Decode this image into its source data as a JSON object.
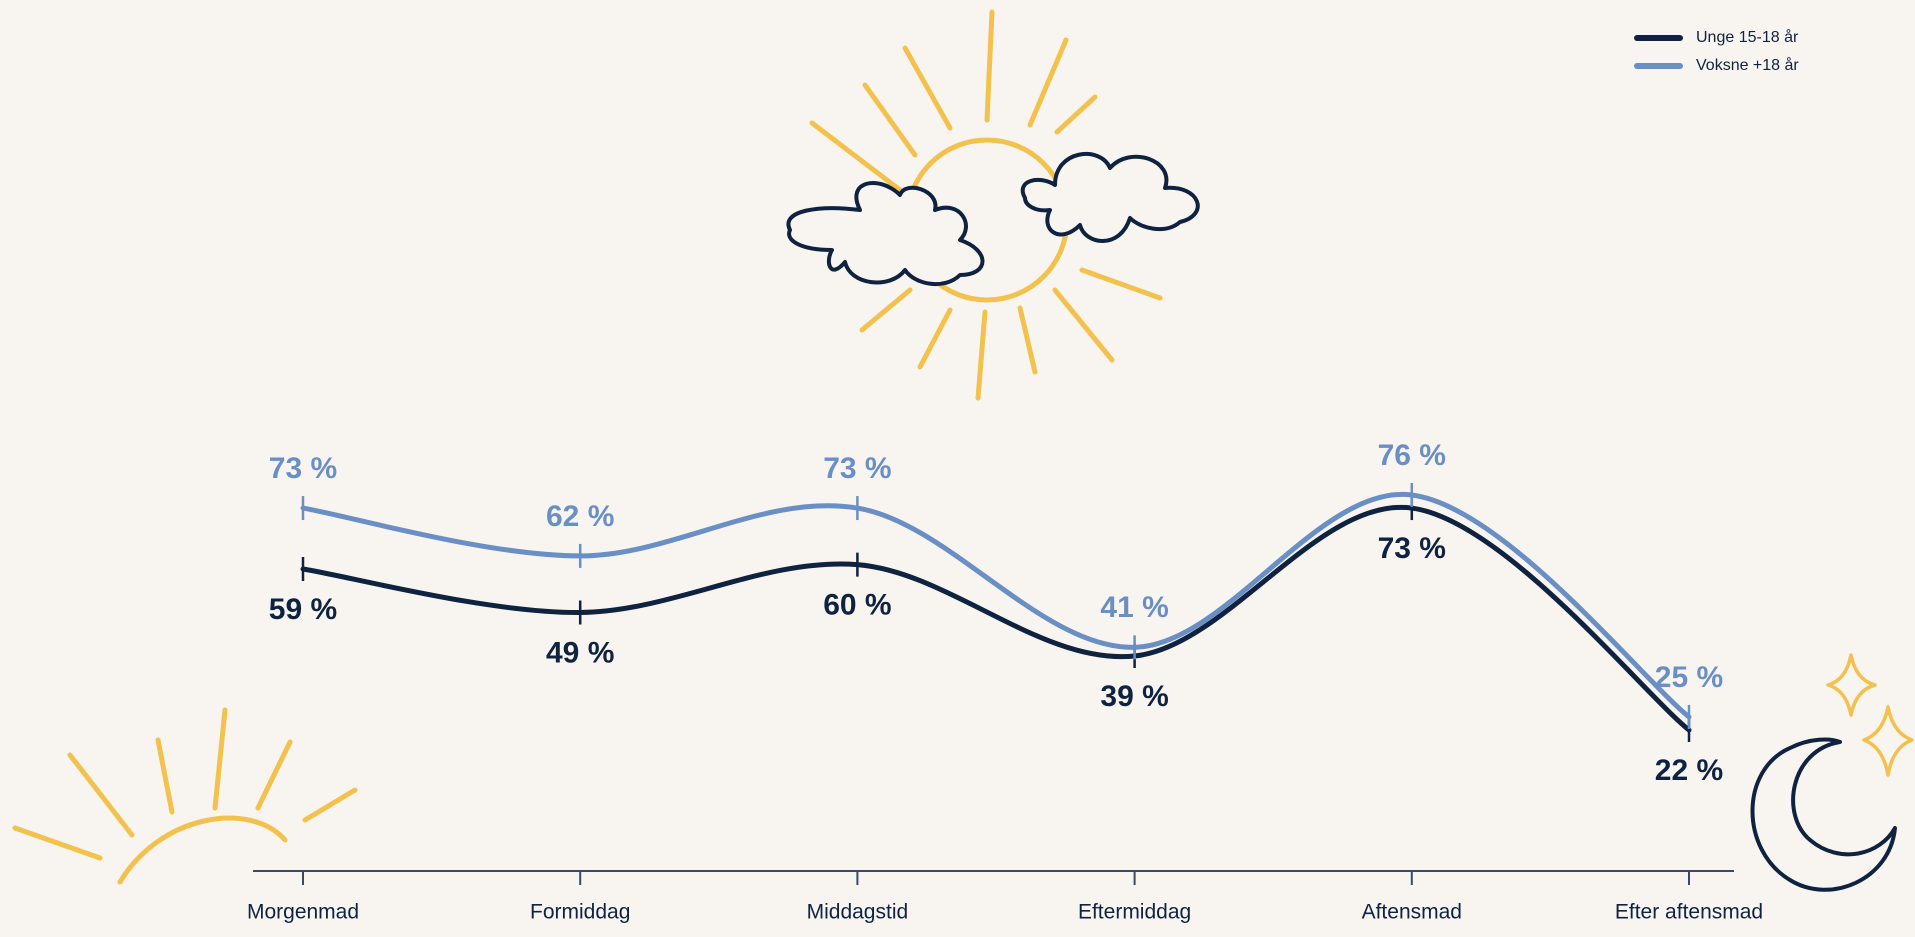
{
  "chart_data": {
    "type": "line",
    "categories": [
      "Morgenmad",
      "Formiddag",
      "Middagstid",
      "Eftermiddag",
      "Aftensmad",
      "Efter aftensmad"
    ],
    "series": [
      {
        "name": "Unge 15-18 år",
        "color": "#0f2340",
        "values": [
          59,
          49,
          60,
          39,
          73,
          22
        ],
        "value_labels": [
          "59 %",
          "49 %",
          "60 %",
          "39 %",
          "73 %",
          "22 %"
        ]
      },
      {
        "name": "Voksne +18 år",
        "color": "#6a8fc4",
        "values": [
          73,
          62,
          73,
          41,
          76,
          25
        ],
        "value_labels": [
          "73 %",
          "62 %",
          "73 %",
          "41 %",
          "76 %",
          "25 %"
        ]
      }
    ],
    "legend": "top-right"
  }
}
